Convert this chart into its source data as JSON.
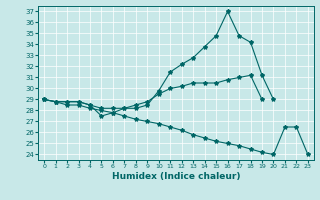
{
  "xlabel": "Humidex (Indice chaleur)",
  "xlim": [
    -0.5,
    23.5
  ],
  "ylim": [
    23.5,
    37.5
  ],
  "yticks": [
    24,
    25,
    26,
    27,
    28,
    29,
    30,
    31,
    32,
    33,
    34,
    35,
    36,
    37
  ],
  "xticks": [
    0,
    1,
    2,
    3,
    4,
    5,
    6,
    7,
    8,
    9,
    10,
    11,
    12,
    13,
    14,
    15,
    16,
    17,
    18,
    19,
    20,
    21,
    22,
    23
  ],
  "bg_color": "#c8e8e8",
  "line_color": "#006666",
  "series": [
    {
      "x": [
        0,
        1,
        2,
        3,
        4,
        5,
        6,
        7,
        8,
        9,
        10,
        11,
        12,
        13,
        14,
        15,
        16,
        17,
        18,
        19,
        20
      ],
      "y": [
        29.0,
        28.8,
        28.8,
        28.8,
        28.5,
        27.5,
        27.8,
        28.2,
        28.2,
        28.5,
        29.8,
        31.5,
        32.2,
        32.8,
        33.8,
        34.8,
        37.0,
        34.8,
        34.2,
        31.2,
        29.0
      ]
    },
    {
      "x": [
        0,
        1,
        2,
        3,
        4,
        5,
        6,
        7,
        8,
        9,
        10,
        11,
        12,
        13,
        14,
        15,
        16,
        17,
        18,
        19
      ],
      "y": [
        29.0,
        28.8,
        28.8,
        28.8,
        28.5,
        28.2,
        28.2,
        28.2,
        28.5,
        28.8,
        29.5,
        30.0,
        30.2,
        30.5,
        30.5,
        30.5,
        30.8,
        31.0,
        31.2,
        29.0
      ]
    },
    {
      "x": [
        0,
        1,
        2,
        3,
        4,
        5,
        6,
        7,
        8,
        9,
        10,
        11,
        12,
        13,
        14,
        15,
        16,
        17,
        18,
        19,
        20,
        21,
        22,
        23
      ],
      "y": [
        29.0,
        28.8,
        28.5,
        28.5,
        28.2,
        28.0,
        27.8,
        27.5,
        27.2,
        27.0,
        26.8,
        26.5,
        26.2,
        25.8,
        25.5,
        25.2,
        25.0,
        24.8,
        24.5,
        24.2,
        24.0,
        26.5,
        26.5,
        24.0
      ]
    }
  ]
}
